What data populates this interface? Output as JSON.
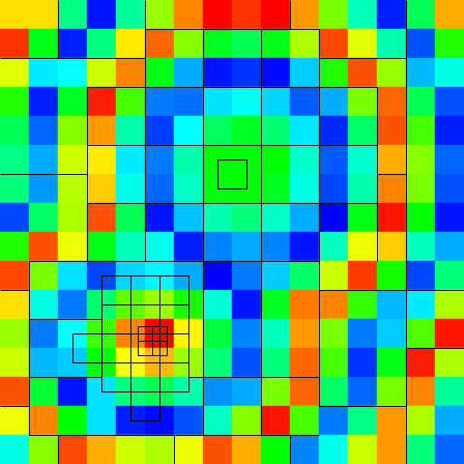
{
  "chart_data": {
    "type": "heatmap",
    "tick_labels": false,
    "grid": false,
    "color_range": [
      0,
      1
    ],
    "cells": [
      [
        0.78,
        0.78,
        0.37,
        0.02,
        0.35,
        0.65,
        0.87,
        1.0,
        0.95,
        1.0,
        0.85,
        0.62,
        0.32,
        0.03,
        0.42,
        0.83
      ],
      [
        0.95,
        0.48,
        0.03,
        0.38,
        0.77,
        0.9,
        0.63,
        0.47,
        0.42,
        0.48,
        0.67,
        0.93,
        0.72,
        0.33,
        0.08,
        0.53
      ],
      [
        0.72,
        0.23,
        0.25,
        0.7,
        0.87,
        0.48,
        0.17,
        0.02,
        0.05,
        0.01,
        0.2,
        0.53,
        0.92,
        0.65,
        0.18,
        0.28
      ],
      [
        0.53,
        0.03,
        0.47,
        0.97,
        0.57,
        0.12,
        0.11,
        0.22,
        0.26,
        0.21,
        0.09,
        0.17,
        0.62,
        0.9,
        0.42,
        0.08
      ],
      [
        0.42,
        0.1,
        0.63,
        0.85,
        0.33,
        0.06,
        0.25,
        0.41,
        0.47,
        0.39,
        0.23,
        0.04,
        0.4,
        0.92,
        0.57,
        0.03
      ],
      [
        0.37,
        0.17,
        0.7,
        0.77,
        0.23,
        0.12,
        0.33,
        0.5,
        0.5,
        0.5,
        0.3,
        0.09,
        0.3,
        0.83,
        0.63,
        0.1
      ],
      [
        0.38,
        0.15,
        0.68,
        0.8,
        0.27,
        0.1,
        0.31,
        0.49,
        0.5,
        0.47,
        0.28,
        0.07,
        0.33,
        0.87,
        0.62,
        0.08
      ],
      [
        0.07,
        0.4,
        0.67,
        0.92,
        0.42,
        0.02,
        0.19,
        0.33,
        0.38,
        0.31,
        0.17,
        0.0,
        0.48,
        0.98,
        0.5,
        0.02
      ],
      [
        0.53,
        0.92,
        0.73,
        0.48,
        0.32,
        0.27,
        0.03,
        0.13,
        0.17,
        0.13,
        0.02,
        0.32,
        0.73,
        0.8,
        0.32,
        0.17
      ],
      [
        0.93,
        0.62,
        0.22,
        0.07,
        0.21,
        0.24,
        0.17,
        0.0,
        0.12,
        0.2,
        0.4,
        0.7,
        0.94,
        0.52,
        0.07,
        0.38
      ],
      [
        0.78,
        0.28,
        0.12,
        0.39,
        0.59,
        0.65,
        0.52,
        0.29,
        0.02,
        0.47,
        0.88,
        0.87,
        0.55,
        0.18,
        0.23,
        0.67
      ],
      [
        0.65,
        0.12,
        0.25,
        0.56,
        0.87,
        1.0,
        0.76,
        0.44,
        0.13,
        0.32,
        0.85,
        0.62,
        0.12,
        0.2,
        0.58,
        0.98
      ],
      [
        0.7,
        0.18,
        0.2,
        0.49,
        0.74,
        0.82,
        0.65,
        0.38,
        0.08,
        0.38,
        0.9,
        0.57,
        0.05,
        0.48,
        0.97,
        0.67
      ],
      [
        0.92,
        0.45,
        0.02,
        0.22,
        0.38,
        0.42,
        0.33,
        0.14,
        0.17,
        0.62,
        0.9,
        0.4,
        0.1,
        0.62,
        0.87,
        0.35
      ],
      [
        0.73,
        0.87,
        0.5,
        0.22,
        0.03,
        0.01,
        0.08,
        0.31,
        0.63,
        0.98,
        0.57,
        0.12,
        0.37,
        0.85,
        0.67,
        0.17
      ],
      [
        0.28,
        0.63,
        0.93,
        0.83,
        0.7,
        0.67,
        0.73,
        0.92,
        0.83,
        0.5,
        0.13,
        0.27,
        0.7,
        0.85,
        0.38,
        0.1
      ]
    ]
  }
}
